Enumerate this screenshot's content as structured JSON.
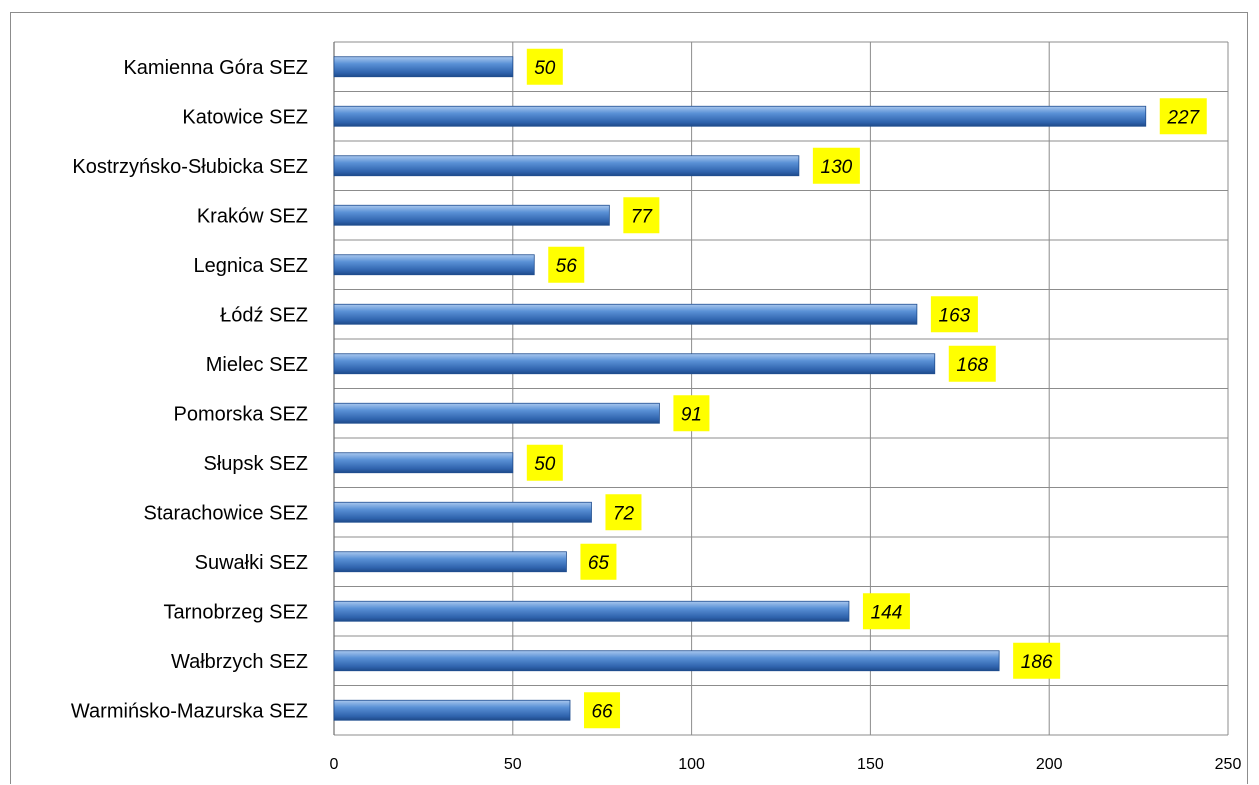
{
  "chart_data": {
    "type": "bar",
    "orientation": "horizontal",
    "categories": [
      "Kamienna Góra SEZ",
      "Katowice SEZ",
      "Kostrzyńsko-Słubicka SEZ",
      "Kraków SEZ",
      "Legnica SEZ",
      "Łódź SEZ",
      "Mielec SEZ",
      "Pomorska SEZ",
      "Słupsk SEZ",
      "Starachowice SEZ",
      "Suwałki SEZ",
      "Tarnobrzeg SEZ",
      "Wałbrzych SEZ",
      "Warmińsko-Mazurska SEZ"
    ],
    "values": [
      50,
      227,
      130,
      77,
      56,
      163,
      168,
      91,
      50,
      72,
      65,
      144,
      186,
      66
    ],
    "xlim": [
      0,
      250
    ],
    "xticks": [
      0,
      50,
      100,
      150,
      200,
      250
    ],
    "title": "",
    "xlabel": "",
    "ylabel": "",
    "grid": "vertical",
    "legend": "none",
    "colors": {
      "bar_top": "#a9c8ee",
      "bar_mid": "#4f87d0",
      "bar_bottom": "#2a5aa0",
      "label_bg": "#ffff00",
      "grid": "#8c8c8c"
    }
  }
}
